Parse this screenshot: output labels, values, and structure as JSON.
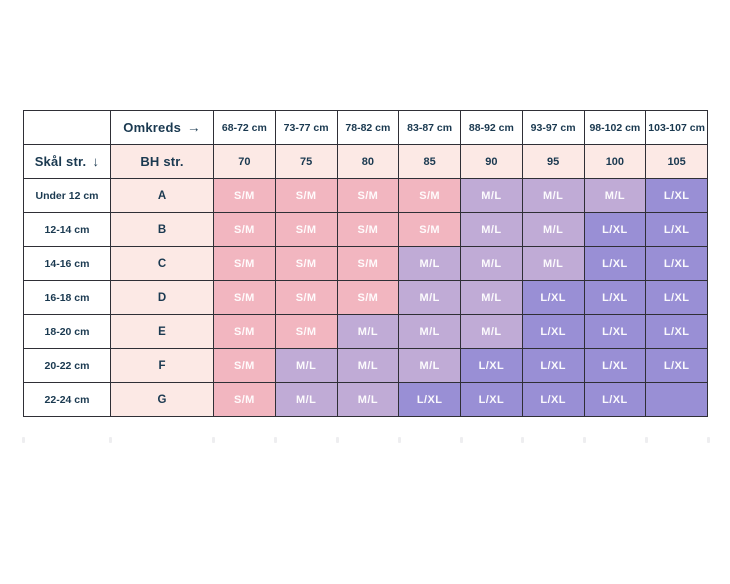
{
  "chart_data": {
    "type": "table",
    "title": "",
    "header_row": {
      "corner": "",
      "omkreds_label": "Omkreds",
      "omkreds_arrow": "→",
      "circumference_ranges": [
        "68-72 cm",
        "73-77 cm",
        "78-82 cm",
        "83-87 cm",
        "88-92 cm",
        "93-97 cm",
        "98-102 cm",
        "103-107 cm"
      ]
    },
    "subheader_row": {
      "cup_label": "Skål str.",
      "cup_arrow": "↓",
      "band_label": "BH str.",
      "band_sizes": [
        "70",
        "75",
        "80",
        "85",
        "90",
        "95",
        "100",
        "105"
      ]
    },
    "rows": [
      {
        "cup_height": "Under 12 cm",
        "cup": "A",
        "sizes": [
          "S/M",
          "S/M",
          "S/M",
          "S/M",
          "M/L",
          "M/L",
          "M/L",
          "L/XL"
        ]
      },
      {
        "cup_height": "12-14 cm",
        "cup": "B",
        "sizes": [
          "S/M",
          "S/M",
          "S/M",
          "S/M",
          "M/L",
          "M/L",
          "L/XL",
          "L/XL"
        ]
      },
      {
        "cup_height": "14-16 cm",
        "cup": "C",
        "sizes": [
          "S/M",
          "S/M",
          "S/M",
          "M/L",
          "M/L",
          "M/L",
          "L/XL",
          "L/XL"
        ]
      },
      {
        "cup_height": "16-18 cm",
        "cup": "D",
        "sizes": [
          "S/M",
          "S/M",
          "S/M",
          "M/L",
          "M/L",
          "L/XL",
          "L/XL",
          "L/XL"
        ]
      },
      {
        "cup_height": "18-20 cm",
        "cup": "E",
        "sizes": [
          "S/M",
          "S/M",
          "M/L",
          "M/L",
          "M/L",
          "L/XL",
          "L/XL",
          "L/XL"
        ]
      },
      {
        "cup_height": "20-22 cm",
        "cup": "F",
        "sizes": [
          "S/M",
          "M/L",
          "M/L",
          "M/L",
          "L/XL",
          "L/XL",
          "L/XL",
          "L/XL"
        ]
      },
      {
        "cup_height": "22-24 cm",
        "cup": "G",
        "sizes": [
          "S/M",
          "M/L",
          "M/L",
          "L/XL",
          "L/XL",
          "L/XL",
          "L/XL",
          ""
        ]
      }
    ],
    "size_values": [
      "S/M",
      "M/L",
      "L/XL"
    ],
    "colors": {
      "S/M": "#f2b6c0",
      "M/L": "#c0abd6",
      "L/XL": "#998fd5"
    }
  },
  "ui_colors": {
    "light_pink": "#fce9e5",
    "text": "#1a3950",
    "border": "#2f2f36",
    "cell_text": "#ffffff",
    "background": "#ffffff"
  }
}
